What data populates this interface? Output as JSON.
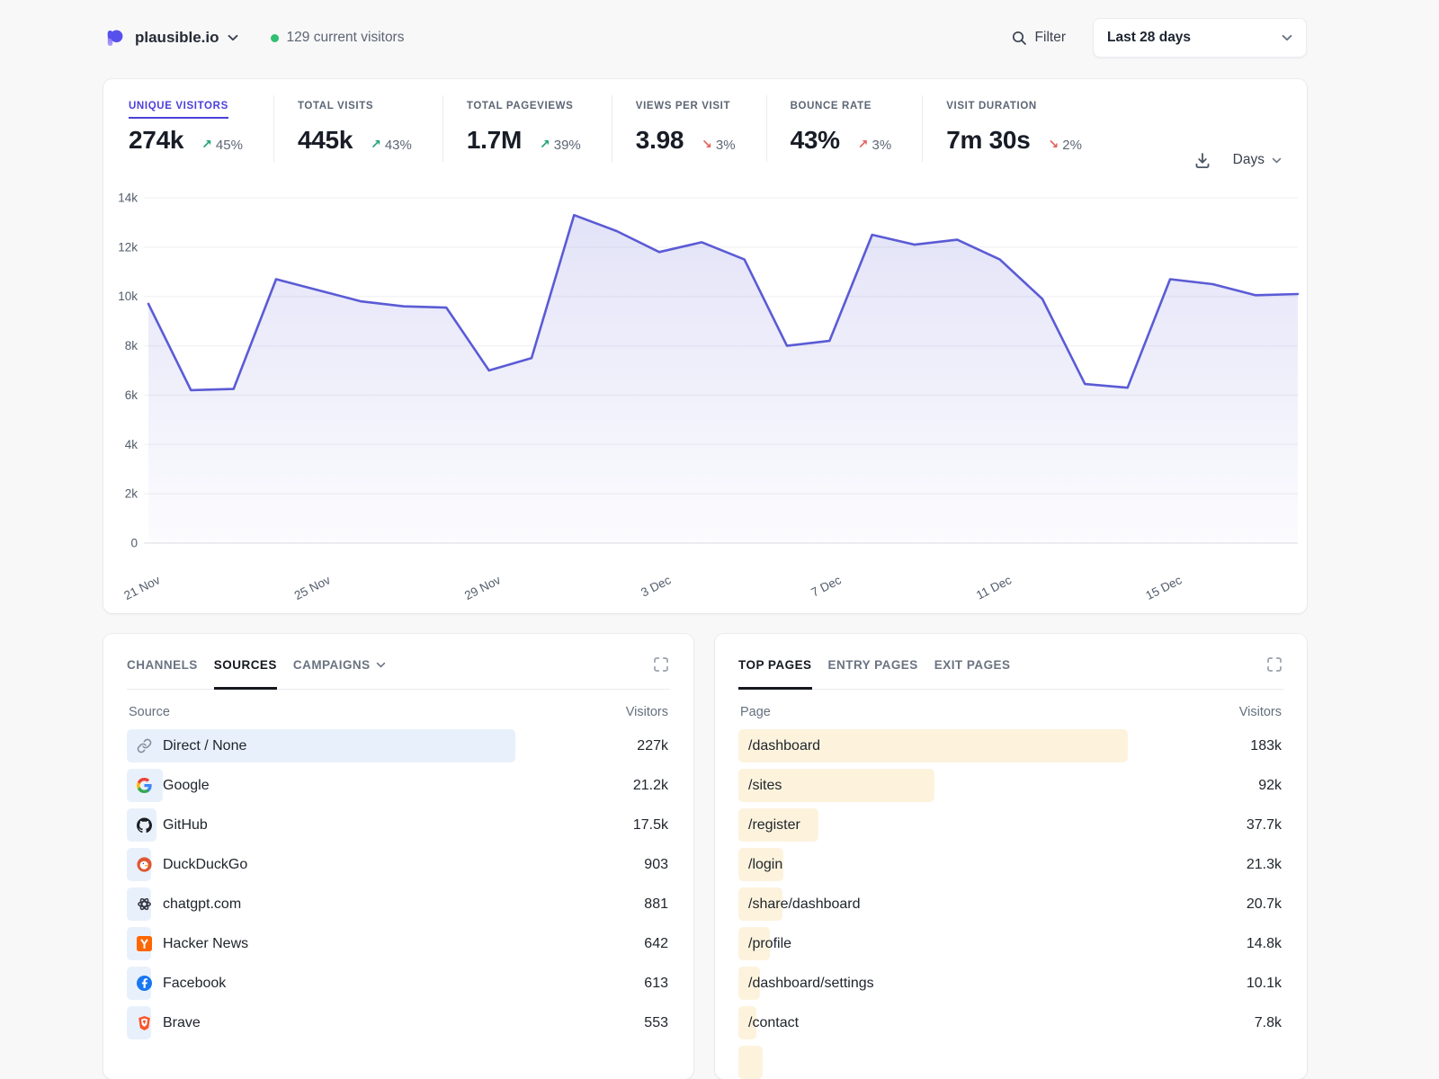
{
  "header": {
    "site": "plausible.io",
    "current_visitors": "129 current visitors",
    "filter_label": "Filter",
    "date_range": "Last 28 days"
  },
  "metrics": [
    {
      "label": "UNIQUE VISITORS",
      "value": "274k",
      "change": "45%",
      "direction": "up",
      "tone": "positive",
      "active": true
    },
    {
      "label": "TOTAL VISITS",
      "value": "445k",
      "change": "43%",
      "direction": "up",
      "tone": "positive"
    },
    {
      "label": "TOTAL PAGEVIEWS",
      "value": "1.7M",
      "change": "39%",
      "direction": "up",
      "tone": "positive"
    },
    {
      "label": "VIEWS PER VISIT",
      "value": "3.98",
      "change": "3%",
      "direction": "down",
      "tone": "negative"
    },
    {
      "label": "BOUNCE RATE",
      "value": "43%",
      "change": "3%",
      "direction": "up",
      "tone": "negative"
    },
    {
      "label": "VISIT DURATION",
      "value": "7m 30s",
      "change": "2%",
      "direction": "down",
      "tone": "negative"
    }
  ],
  "chart_controls": {
    "interval": "Days",
    "download_icon": "download-icon"
  },
  "chart_data": {
    "type": "area",
    "title": "Unique visitors by day",
    "x": [
      "21 Nov",
      "22 Nov",
      "23 Nov",
      "24 Nov",
      "25 Nov",
      "26 Nov",
      "27 Nov",
      "28 Nov",
      "29 Nov",
      "30 Nov",
      "1 Dec",
      "2 Dec",
      "3 Dec",
      "4 Dec",
      "5 Dec",
      "6 Dec",
      "7 Dec",
      "8 Dec",
      "9 Dec",
      "10 Dec",
      "11 Dec",
      "12 Dec",
      "13 Dec",
      "14 Dec",
      "15 Dec",
      "16 Dec",
      "17 Dec",
      "18 Dec"
    ],
    "values": [
      9700,
      6200,
      6250,
      10700,
      10250,
      9800,
      9600,
      9550,
      7000,
      7500,
      13300,
      12650,
      11800,
      12200,
      11500,
      8000,
      8200,
      12500,
      12100,
      12300,
      11500,
      9900,
      6450,
      6300,
      10700,
      10500,
      10050,
      10100
    ],
    "ylim": [
      0,
      14000
    ],
    "yticks": [
      0,
      2000,
      4000,
      6000,
      8000,
      10000,
      12000,
      14000
    ],
    "ytick_labels": [
      "0",
      "2k",
      "4k",
      "6k",
      "8k",
      "10k",
      "12k",
      "14k"
    ],
    "xtick_indices": [
      0,
      4,
      8,
      12,
      16,
      20,
      24
    ],
    "xtick_labels": [
      "21 Nov",
      "25 Nov",
      "29 Nov",
      "3 Dec",
      "7 Dec",
      "11 Dec",
      "15 Dec"
    ],
    "line_color": "#5b5bd6",
    "grid": true,
    "legend": "none"
  },
  "sources_panel": {
    "tabs": [
      {
        "label": "CHANNELS"
      },
      {
        "label": "SOURCES",
        "active": true
      },
      {
        "label": "CAMPAIGNS",
        "chevron": true
      }
    ],
    "columns": {
      "left": "Source",
      "right": "Visitors"
    },
    "rows": [
      {
        "icon": "link",
        "label": "Direct / None",
        "value": "227k",
        "num": 227000
      },
      {
        "icon": "google",
        "label": "Google",
        "value": "21.2k",
        "num": 21200
      },
      {
        "icon": "github",
        "label": "GitHub",
        "value": "17.5k",
        "num": 17500
      },
      {
        "icon": "duckduckgo",
        "label": "DuckDuckGo",
        "value": "903",
        "num": 903
      },
      {
        "icon": "chatgpt",
        "label": "chatgpt.com",
        "value": "881",
        "num": 881
      },
      {
        "icon": "hackernews",
        "label": "Hacker News",
        "value": "642",
        "num": 642
      },
      {
        "icon": "facebook",
        "label": "Facebook",
        "value": "613",
        "num": 613
      },
      {
        "icon": "brave",
        "label": "Brave",
        "value": "553",
        "num": 553
      }
    ]
  },
  "pages_panel": {
    "tabs": [
      {
        "label": "TOP PAGES",
        "active": true
      },
      {
        "label": "ENTRY PAGES"
      },
      {
        "label": "EXIT PAGES"
      }
    ],
    "columns": {
      "left": "Page",
      "right": "Visitors"
    },
    "has_partial_next_row": true,
    "rows": [
      {
        "label": "/dashboard",
        "value": "183k",
        "num": 183000
      },
      {
        "label": "/sites",
        "value": "92k",
        "num": 92000
      },
      {
        "label": "/register",
        "value": "37.7k",
        "num": 37700
      },
      {
        "label": "/login",
        "value": "21.3k",
        "num": 21300
      },
      {
        "label": "/share/dashboard",
        "value": "20.7k",
        "num": 20700
      },
      {
        "label": "/profile",
        "value": "14.8k",
        "num": 14800
      },
      {
        "label": "/dashboard/settings",
        "value": "10.1k",
        "num": 10100
      },
      {
        "label": "/contact",
        "value": "7.8k",
        "num": 7800
      }
    ]
  },
  "colors": {
    "accent_indigo": "#4c40d9",
    "chart_line": "#5b5bd6",
    "positive_green": "#1fa374",
    "negative_red": "#e35f5b",
    "source_bar": "#e8f1fb",
    "page_bar": "#fdf3dd",
    "live_dot": "#2fbf71"
  }
}
